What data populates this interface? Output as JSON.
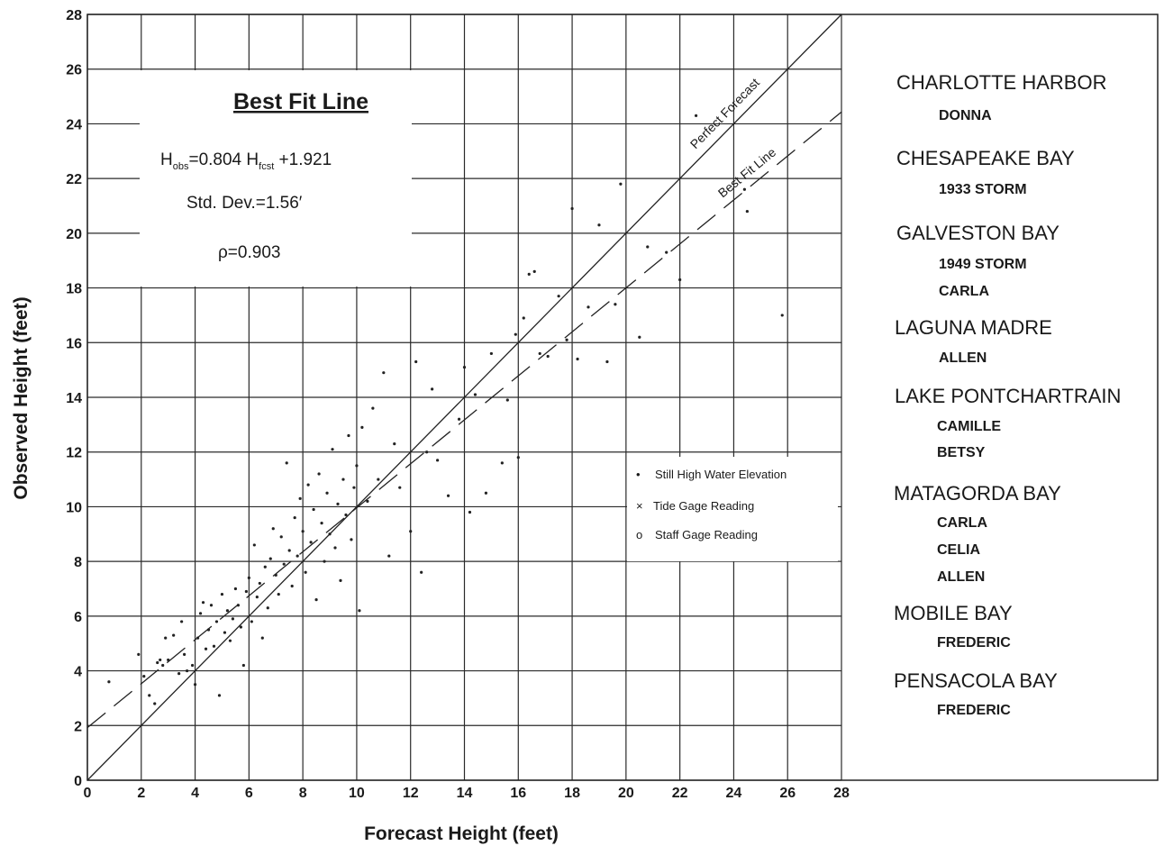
{
  "chart_data": {
    "type": "scatter",
    "xlabel": "Forecast Height (feet)",
    "ylabel": "Observed Height (feet)",
    "xlim": [
      0,
      28
    ],
    "ylim": [
      0,
      28
    ],
    "x_ticks": [
      0,
      2,
      4,
      6,
      8,
      10,
      12,
      14,
      16,
      18,
      20,
      22,
      24,
      26,
      28
    ],
    "y_ticks": [
      0,
      2,
      4,
      6,
      8,
      10,
      12,
      14,
      16,
      18,
      20,
      22,
      24,
      26,
      28
    ],
    "grid": true,
    "lines": [
      {
        "label": "Perfect Forecast",
        "slope": 1.0,
        "intercept": 0.0,
        "style": "solid"
      },
      {
        "label": "Best Fit Line",
        "slope": 0.804,
        "intercept": 1.921,
        "style": "dashed"
      }
    ],
    "fit_box": {
      "title": "Best Fit Line",
      "equation_prefix": "H",
      "equation_sub_obs": "obs",
      "equation_mid": "=0.804 H",
      "equation_sub_fcst": "fcst",
      "equation_suffix": " +1.921",
      "std_dev": "Std. Dev.=1.56′",
      "rho": "ρ=0.903"
    },
    "legend": {
      "placement": "center-right",
      "items": [
        {
          "symbol": "•",
          "label": "Still High Water Elevation"
        },
        {
          "symbol": "×",
          "label": "Tide Gage Reading"
        },
        {
          "symbol": "o",
          "label": "Staff Gage Reading"
        }
      ]
    },
    "storms": [
      {
        "bay": "CHARLOTTE HARBOR",
        "events": [
          "DONNA"
        ]
      },
      {
        "bay": "CHESAPEAKE BAY",
        "events": [
          "1933 STORM"
        ]
      },
      {
        "bay": "GALVESTON BAY",
        "events": [
          "1949 STORM",
          "CARLA"
        ]
      },
      {
        "bay": "LAGUNA MADRE",
        "events": [
          "ALLEN"
        ]
      },
      {
        "bay": "LAKE PONTCHARTRAIN",
        "events": [
          "CAMILLE",
          "BETSY"
        ]
      },
      {
        "bay": "MATAGORDA BAY",
        "events": [
          "CARLA",
          "CELIA",
          "ALLEN"
        ]
      },
      {
        "bay": "MOBILE BAY",
        "events": [
          "FREDERIC"
        ]
      },
      {
        "bay": "PENSACOLA BAY",
        "events": [
          "FREDERIC"
        ]
      }
    ],
    "points": [
      [
        0.8,
        3.6
      ],
      [
        1.9,
        4.6
      ],
      [
        2.1,
        3.8
      ],
      [
        2.3,
        3.1
      ],
      [
        2.5,
        2.8
      ],
      [
        2.6,
        4.3
      ],
      [
        2.7,
        4.4
      ],
      [
        2.8,
        4.2
      ],
      [
        2.9,
        5.2
      ],
      [
        3.0,
        4.4
      ],
      [
        3.2,
        5.3
      ],
      [
        3.4,
        3.9
      ],
      [
        3.5,
        5.8
      ],
      [
        3.6,
        4.6
      ],
      [
        3.7,
        4.0
      ],
      [
        3.9,
        4.2
      ],
      [
        4.0,
        3.5
      ],
      [
        4.1,
        5.2
      ],
      [
        4.2,
        6.1
      ],
      [
        4.3,
        6.5
      ],
      [
        4.4,
        4.8
      ],
      [
        4.5,
        5.5
      ],
      [
        4.6,
        6.4
      ],
      [
        4.7,
        4.9
      ],
      [
        4.8,
        5.8
      ],
      [
        4.9,
        3.1
      ],
      [
        5.0,
        6.8
      ],
      [
        5.1,
        5.4
      ],
      [
        5.2,
        6.2
      ],
      [
        5.3,
        5.1
      ],
      [
        5.4,
        5.9
      ],
      [
        5.5,
        7.0
      ],
      [
        5.6,
        6.4
      ],
      [
        5.7,
        5.6
      ],
      [
        5.8,
        4.2
      ],
      [
        5.9,
        6.9
      ],
      [
        6.0,
        7.4
      ],
      [
        6.1,
        5.8
      ],
      [
        6.2,
        8.6
      ],
      [
        6.3,
        6.7
      ],
      [
        6.4,
        7.2
      ],
      [
        6.5,
        5.2
      ],
      [
        6.6,
        7.8
      ],
      [
        6.7,
        6.3
      ],
      [
        6.8,
        8.1
      ],
      [
        6.9,
        9.2
      ],
      [
        7.0,
        7.5
      ],
      [
        7.1,
        6.8
      ],
      [
        7.2,
        8.9
      ],
      [
        7.3,
        7.9
      ],
      [
        7.4,
        11.6
      ],
      [
        7.5,
        8.4
      ],
      [
        7.6,
        7.1
      ],
      [
        7.7,
        9.6
      ],
      [
        7.8,
        8.2
      ],
      [
        7.9,
        10.3
      ],
      [
        8.0,
        9.1
      ],
      [
        8.1,
        7.6
      ],
      [
        8.2,
        10.8
      ],
      [
        8.3,
        8.7
      ],
      [
        8.4,
        9.9
      ],
      [
        8.5,
        6.6
      ],
      [
        8.6,
        11.2
      ],
      [
        8.7,
        9.4
      ],
      [
        8.8,
        8.0
      ],
      [
        8.9,
        10.5
      ],
      [
        9.0,
        9.0
      ],
      [
        9.1,
        12.1
      ],
      [
        9.2,
        8.5
      ],
      [
        9.3,
        10.1
      ],
      [
        9.4,
        7.3
      ],
      [
        9.5,
        11.0
      ],
      [
        9.6,
        9.7
      ],
      [
        9.7,
        12.6
      ],
      [
        9.8,
        8.8
      ],
      [
        9.9,
        10.7
      ],
      [
        10.0,
        11.5
      ],
      [
        10.1,
        6.2
      ],
      [
        10.2,
        12.9
      ],
      [
        10.4,
        10.2
      ],
      [
        10.6,
        13.6
      ],
      [
        10.8,
        11.0
      ],
      [
        11.0,
        14.9
      ],
      [
        11.2,
        8.2
      ],
      [
        11.4,
        12.3
      ],
      [
        11.6,
        10.7
      ],
      [
        12.0,
        9.1
      ],
      [
        12.2,
        15.3
      ],
      [
        12.4,
        7.6
      ],
      [
        12.6,
        12.0
      ],
      [
        12.8,
        14.3
      ],
      [
        13.0,
        11.7
      ],
      [
        13.4,
        10.4
      ],
      [
        13.8,
        13.2
      ],
      [
        14.0,
        15.1
      ],
      [
        14.2,
        9.8
      ],
      [
        14.4,
        14.1
      ],
      [
        14.8,
        10.5
      ],
      [
        15.0,
        15.6
      ],
      [
        15.4,
        11.6
      ],
      [
        15.6,
        13.9
      ],
      [
        15.9,
        16.3
      ],
      [
        16.0,
        11.8
      ],
      [
        16.2,
        16.9
      ],
      [
        16.4,
        18.5
      ],
      [
        16.6,
        18.6
      ],
      [
        16.8,
        15.6
      ],
      [
        17.1,
        15.5
      ],
      [
        17.5,
        17.7
      ],
      [
        17.8,
        16.1
      ],
      [
        18.0,
        20.9
      ],
      [
        18.2,
        15.4
      ],
      [
        18.6,
        17.3
      ],
      [
        19.0,
        20.3
      ],
      [
        19.3,
        15.3
      ],
      [
        19.6,
        17.4
      ],
      [
        19.8,
        21.8
      ],
      [
        20.5,
        16.2
      ],
      [
        20.8,
        19.5
      ],
      [
        21.5,
        19.3
      ],
      [
        22.0,
        18.3
      ],
      [
        22.6,
        24.3
      ],
      [
        24.4,
        21.6
      ],
      [
        24.5,
        20.8
      ],
      [
        25.8,
        17.0
      ]
    ]
  }
}
